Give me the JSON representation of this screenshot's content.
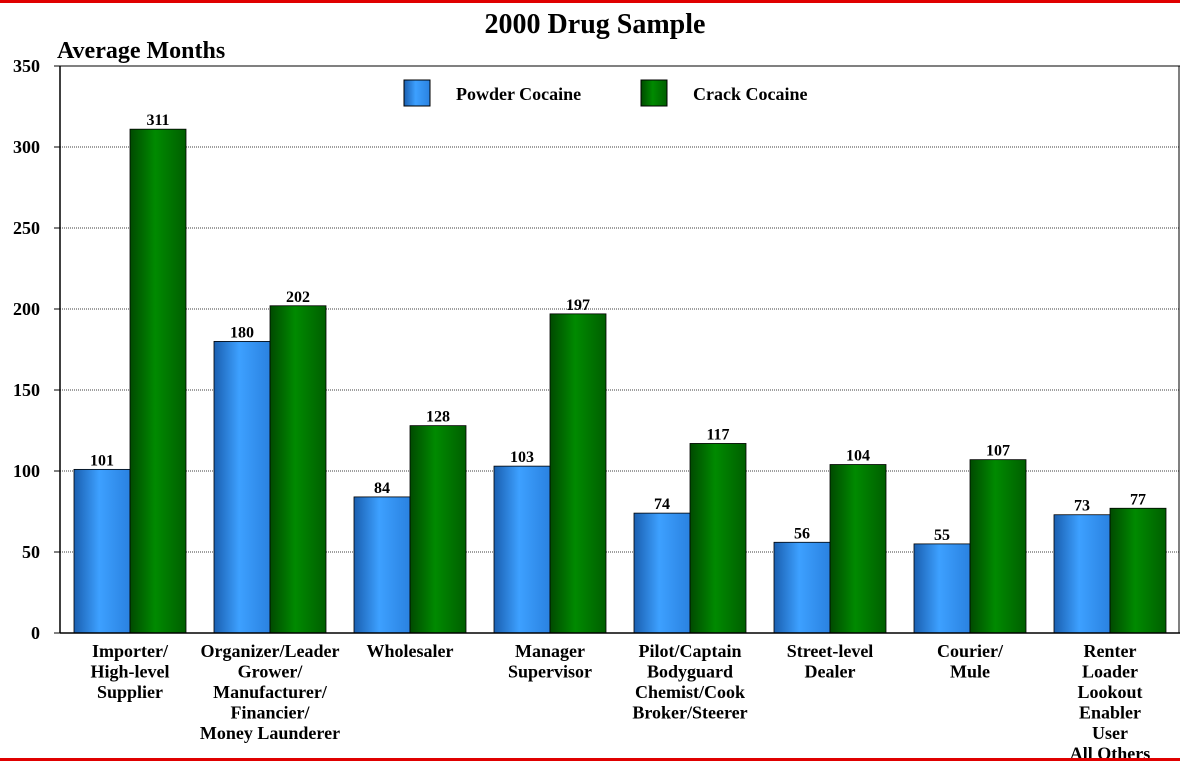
{
  "chart_data": {
    "type": "bar",
    "title": "2000 Drug Sample",
    "ylabel": "Average Months",
    "xlabel": "",
    "ylim": [
      0,
      350
    ],
    "yticks": [
      0,
      50,
      100,
      150,
      200,
      250,
      300,
      350
    ],
    "grid": true,
    "legend_position": "top",
    "categories": [
      [
        "Importer/",
        "High-level",
        "Supplier"
      ],
      [
        "Organizer/Leader",
        "Grower/",
        "Manufacturer/",
        "Financier/",
        "Money Launderer"
      ],
      [
        "Wholesaler"
      ],
      [
        "Manager",
        "Supervisor"
      ],
      [
        "Pilot/Captain",
        "Bodyguard",
        "Chemist/Cook",
        "Broker/Steerer"
      ],
      [
        "Street-level",
        "Dealer"
      ],
      [
        "Courier/",
        "Mule"
      ],
      [
        "Renter",
        "Loader",
        "Lookout",
        "Enabler",
        "User",
        "All Others"
      ]
    ],
    "series": [
      {
        "name": "Powder Cocaine",
        "color": "#3399ff",
        "values": [
          101,
          180,
          84,
          103,
          74,
          56,
          55,
          73
        ]
      },
      {
        "name": "Crack Cocaine",
        "color": "#007a00",
        "values": [
          311,
          202,
          128,
          197,
          117,
          104,
          107,
          77
        ]
      }
    ]
  }
}
